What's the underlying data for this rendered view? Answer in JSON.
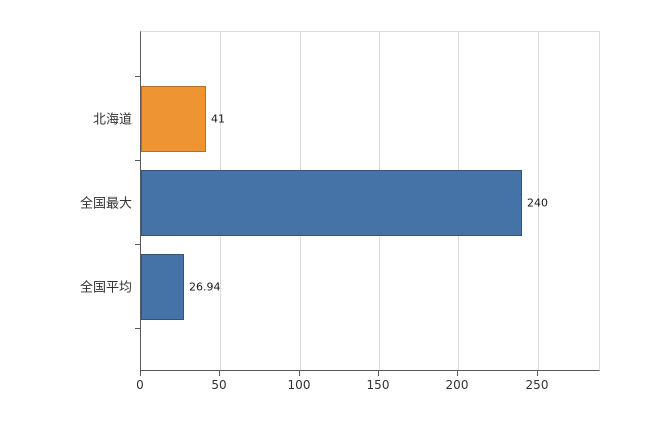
{
  "chart_data": {
    "type": "bar",
    "orientation": "horizontal",
    "title": "",
    "xlabel": "",
    "ylabel": "",
    "categories": [
      "北海道",
      "全国最大",
      "全国平均"
    ],
    "values": [
      41,
      240,
      26.94
    ],
    "value_labels": [
      "41",
      "240",
      "26.94"
    ],
    "bar_colors": [
      "#EF9433",
      "#4572A7",
      "#4572A7"
    ],
    "xlim": [
      0,
      290
    ],
    "xticks": [
      0,
      50,
      100,
      150,
      200,
      250
    ],
    "grid": true,
    "legend": "none",
    "colors": {
      "axis": "#595959",
      "gridline": "#dcdcdc",
      "text": "#333333",
      "background": "#ffffff"
    }
  }
}
